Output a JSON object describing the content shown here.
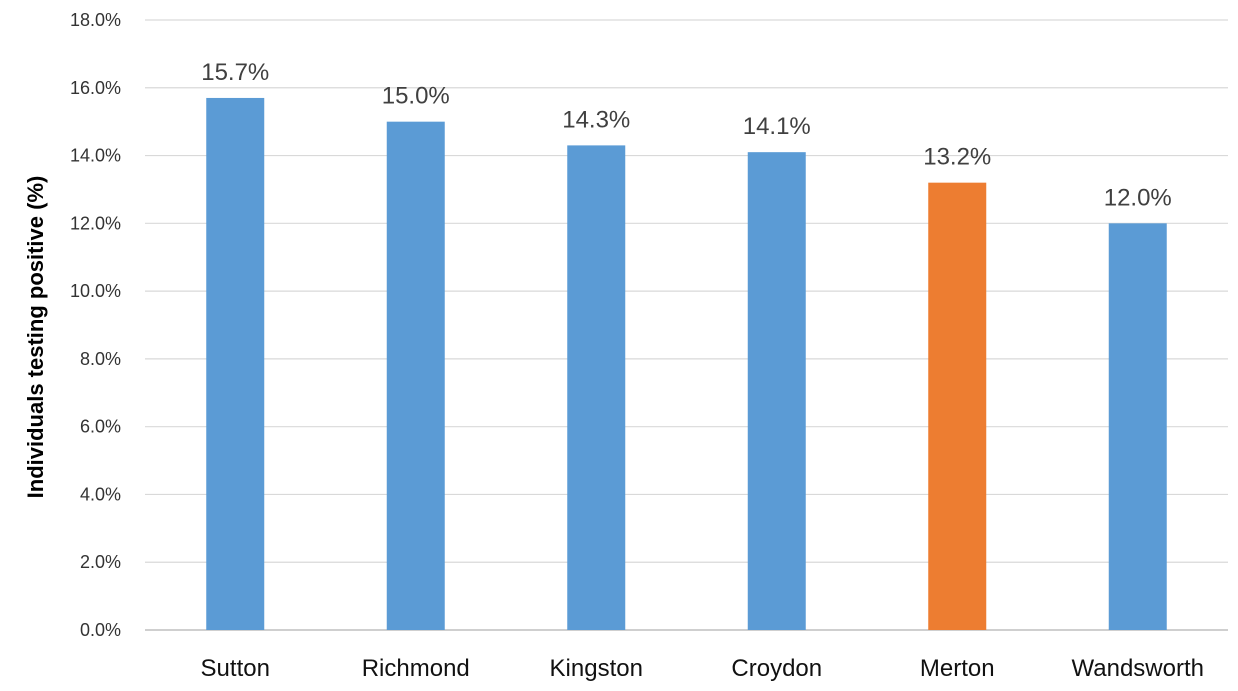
{
  "chart_data": {
    "type": "bar",
    "title": "",
    "xlabel": "",
    "ylabel": "Individuals testing positive (%)",
    "categories": [
      "Sutton",
      "Richmond",
      "Kingston",
      "Croydon",
      "Merton",
      "Wandsworth"
    ],
    "values": [
      15.7,
      15.0,
      14.3,
      14.1,
      13.2,
      12.0
    ],
    "data_labels": [
      "15.7%",
      "15.0%",
      "14.3%",
      "14.1%",
      "13.2%",
      "12.0%"
    ],
    "ylim": [
      0,
      18
    ],
    "yticks": [
      0,
      2,
      4,
      6,
      8,
      10,
      12,
      14,
      16,
      18
    ],
    "ytick_labels": [
      "0.0%",
      "2.0%",
      "4.0%",
      "6.0%",
      "8.0%",
      "10.0%",
      "12.0%",
      "14.0%",
      "16.0%",
      "18.0%"
    ],
    "grid": true,
    "legend": "none",
    "colors": {
      "default_bar": "#5B9BD5",
      "highlight_bar": "#ED7D31"
    },
    "highlight_category": "Merton"
  }
}
